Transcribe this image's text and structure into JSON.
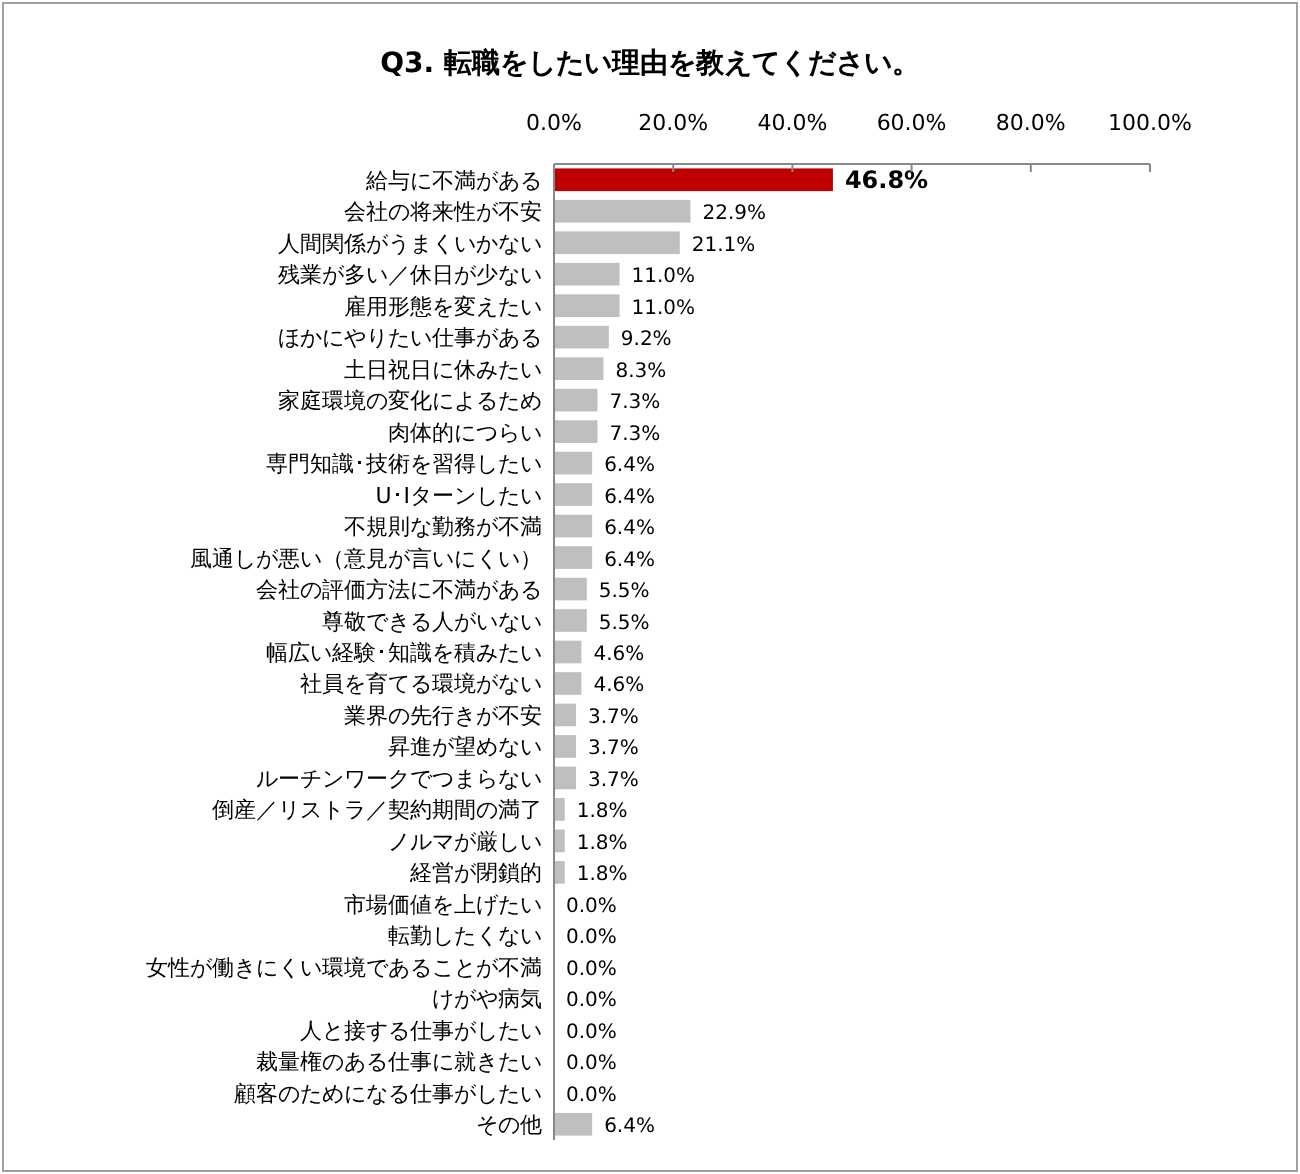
{
  "chart_data": {
    "type": "bar",
    "orientation": "horizontal",
    "title": "Q3. 転職をしたい理由を教えてください。",
    "categories": [
      "給与に不満がある",
      "会社の将来性が不安",
      "人間関係がうまくいかない",
      "残業が多い／休日が少ない",
      "雇用形態を変えたい",
      "ほかにやりたい仕事がある",
      "土日祝日に休みたい",
      "家庭環境の変化によるため",
      "肉体的につらい",
      "専門知識･技術を習得したい",
      "U･Iターンしたい",
      "不規則な勤務が不満",
      "風通しが悪い（意見が言いにくい）",
      "会社の評価方法に不満がある",
      "尊敬できる人がいない",
      "幅広い経験･知識を積みたい",
      "社員を育てる環境がない",
      "業界の先行きが不安",
      "昇進が望めない",
      "ルーチンワークでつまらない",
      "倒産／リストラ／契約期間の満了",
      "ノルマが厳しい",
      "経営が閉鎖的",
      "市場価値を上げたい",
      "転勤したくない",
      "女性が働きにくい環境であることが不満",
      "けがや病気",
      "人と接する仕事がしたい",
      "裁量権のある仕事に就きたい",
      "顧客のためになる仕事がしたい",
      "その他"
    ],
    "values": [
      46.8,
      22.9,
      21.1,
      11.0,
      11.0,
      9.2,
      8.3,
      7.3,
      7.3,
      6.4,
      6.4,
      6.4,
      6.4,
      5.5,
      5.5,
      4.6,
      4.6,
      3.7,
      3.7,
      3.7,
      1.8,
      1.8,
      1.8,
      0,
      0,
      0,
      0,
      0,
      0,
      0,
      6.4
    ],
    "value_labels": [
      "46.8%",
      "22.9%",
      "21.1%",
      "11.0%",
      "11.0%",
      "9.2%",
      "8.3%",
      "7.3%",
      "7.3%",
      "6.4%",
      "6.4%",
      "6.4%",
      "6.4%",
      "5.5%",
      "5.5%",
      "4.6%",
      "4.6%",
      "3.7%",
      "3.7%",
      "3.7%",
      "1.8%",
      "1.8%",
      "1.8%",
      "0.0%",
      "0.0%",
      "0.0%",
      "0.0%",
      "0.0%",
      "0.0%",
      "0.0%",
      "6.4%"
    ],
    "colors": [
      "#c00000",
      "#bfbfbf",
      "#bfbfbf",
      "#bfbfbf",
      "#bfbfbf",
      "#bfbfbf",
      "#bfbfbf",
      "#bfbfbf",
      "#bfbfbf",
      "#bfbfbf",
      "#bfbfbf",
      "#bfbfbf",
      "#bfbfbf",
      "#bfbfbf",
      "#bfbfbf",
      "#bfbfbf",
      "#bfbfbf",
      "#bfbfbf",
      "#bfbfbf",
      "#bfbfbf",
      "#bfbfbf",
      "#bfbfbf",
      "#bfbfbf",
      "#bfbfbf",
      "#bfbfbf",
      "#bfbfbf",
      "#bfbfbf",
      "#bfbfbf",
      "#bfbfbf",
      "#bfbfbf",
      "#bfbfbf"
    ],
    "xlim": [
      0,
      100
    ],
    "xticks": [
      {
        "value": 0,
        "label": "0.0%"
      },
      {
        "value": 20,
        "label": "20.0%"
      },
      {
        "value": 40,
        "label": "40.0%"
      },
      {
        "value": 60,
        "label": "60.0%"
      },
      {
        "value": 80,
        "label": "80.0%"
      },
      {
        "value": 100,
        "label": "100.0%"
      }
    ],
    "grid": false
  }
}
